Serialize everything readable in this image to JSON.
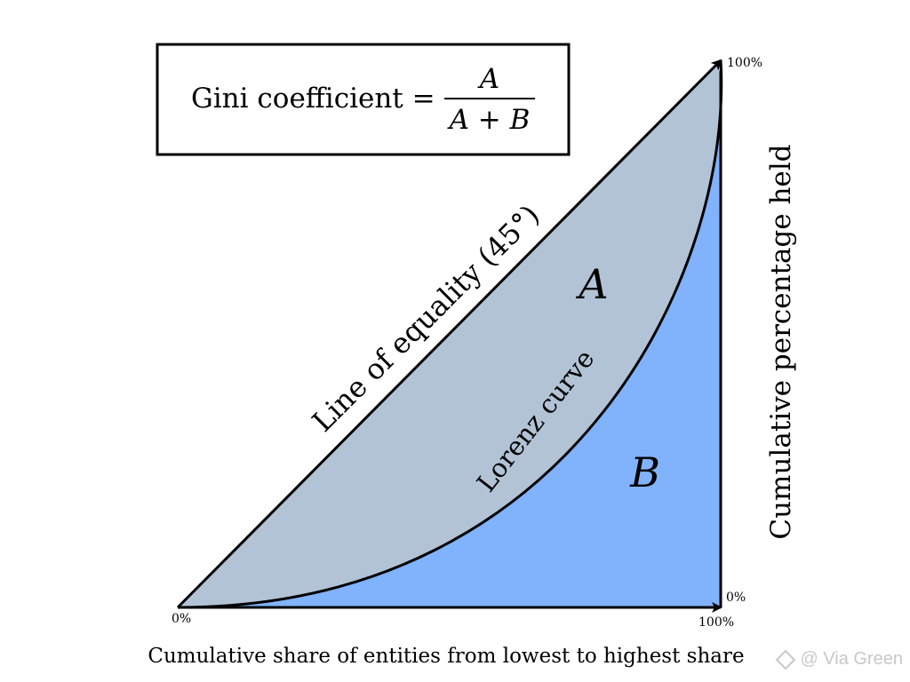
{
  "formula": {
    "lhs": "Gini coefficient =",
    "numerator": "A",
    "denominator": "A + B"
  },
  "labels": {
    "line_of_equality": "Line of equality (45°)",
    "lorenz_curve": "Lorenz curve",
    "region_a": "A",
    "region_b": "B",
    "x_axis": "Cumulative share of entities from lowest to highest share",
    "y_axis": "Cumulative percentage held"
  },
  "ticks": {
    "origin": "0%",
    "x_end": "100%",
    "y_top": "100%",
    "y_zero": "0%"
  },
  "colors": {
    "region_a_fill": "#b2c3d6",
    "region_b_fill": "#81b2fc",
    "stroke": "#000000"
  },
  "watermark": {
    "text": "@ Via Green"
  }
}
